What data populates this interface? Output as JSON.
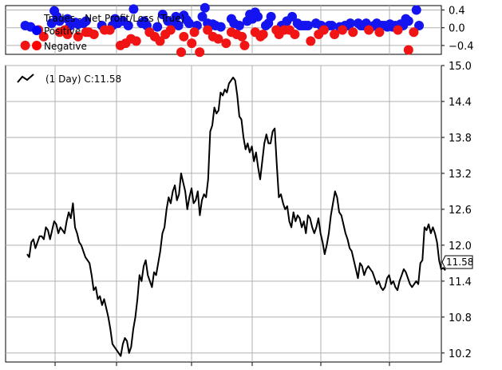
{
  "chart_data": [
    {
      "panel": "trades",
      "type": "scatter",
      "ylim": [
        -0.6,
        0.5
      ],
      "ytick_labels": [
        "0.4",
        "0.0",
        "−0.4"
      ],
      "ytick_values": [
        0.4,
        0.0,
        -0.4
      ],
      "grid": true,
      "legend": {
        "placement": "top-left",
        "entries": [
          {
            "label": "Trades - Net Profit/Loss (True)",
            "marker": "none"
          },
          {
            "label": "Positive",
            "color": "#0000ff"
          },
          {
            "label": "Negative",
            "color": "#ff0000"
          }
        ]
      },
      "series": [
        {
          "name": "Positive",
          "color": "#1414f0",
          "x": [
            2,
            4,
            12,
            13,
            14,
            15,
            18,
            19,
            21,
            22,
            24,
            25,
            31,
            35,
            36,
            37,
            39,
            41,
            43,
            46,
            47,
            48,
            52,
            54,
            56,
            58,
            59,
            60,
            62,
            63,
            64,
            67,
            69,
            70,
            71,
            72,
            73,
            74,
            76,
            80,
            81,
            83,
            86,
            87,
            88,
            89,
            90,
            93,
            94,
            95,
            99,
            101,
            103,
            105,
            106,
            107,
            108,
            109,
            112,
            114,
            117,
            118,
            121,
            123,
            124,
            125,
            128,
            129,
            130,
            131,
            133,
            134,
            135,
            137,
            138,
            139,
            140,
            141,
            142,
            144,
            145,
            146,
            147,
            150,
            151
          ],
          "y": [
            0.05,
            0.02,
            0.1,
            0.38,
            0.25,
            0.15,
            0.2,
            0.05,
            0.12,
            0.08,
            0.1,
            0.15,
            0.05,
            0.05,
            0.2,
            0.1,
            0.15,
            0.05,
            0.42,
            0.1,
            0.15,
            0.05,
            0.02,
            0.3,
            0.15,
            0.1,
            0.25,
            0.05,
            0.28,
            0.18,
            0.1,
            0.05,
            0.25,
            0.45,
            0.1,
            0.05,
            0.08,
            0.05,
            0.02,
            0.2,
            0.1,
            0.05,
            0.15,
            0.3,
            0.2,
            0.35,
            0.25,
            0.05,
            0.1,
            0.25,
            0.05,
            0.15,
            0.25,
            0.1,
            0.05,
            0.05,
            0.05,
            0.05,
            0.1,
            0.05,
            0.05,
            0.05,
            0.02,
            0.05,
            0.05,
            0.1,
            0.1,
            0.05,
            0.05,
            0.1,
            0.02,
            0.05,
            0.1,
            0.05,
            0.05,
            0.02,
            0.08,
            0.02,
            0.05,
            0.08,
            0.05,
            0.2,
            0.15,
            0.4,
            0.05
          ]
        },
        {
          "name": "Negative",
          "color": "#f01414",
          "x": [
            2,
            7,
            9,
            15,
            17,
            18,
            22,
            25,
            26,
            28,
            32,
            34,
            38,
            40,
            42,
            44,
            49,
            51,
            53,
            55,
            57,
            61,
            62,
            65,
            66,
            68,
            71,
            73,
            75,
            78,
            80,
            82,
            84,
            85,
            89,
            91,
            92,
            97,
            98,
            100,
            102,
            104,
            110,
            113,
            115,
            119,
            122,
            126,
            132,
            136,
            143,
            147,
            149
          ],
          "y": [
            -0.4,
            -0.05,
            -0.2,
            -0.1,
            -0.05,
            -0.15,
            -0.2,
            -0.1,
            -0.1,
            -0.15,
            -0.05,
            -0.05,
            -0.4,
            -0.35,
            -0.25,
            -0.3,
            -0.1,
            -0.2,
            -0.3,
            -0.15,
            -0.05,
            -0.55,
            -0.2,
            -0.35,
            -0.1,
            -0.55,
            -0.05,
            -0.2,
            -0.25,
            -0.35,
            -0.1,
            -0.15,
            -0.2,
            -0.4,
            -0.1,
            -0.2,
            -0.15,
            -0.05,
            -0.15,
            -0.05,
            -0.05,
            -0.15,
            -0.3,
            -0.15,
            -0.05,
            -0.15,
            -0.05,
            -0.1,
            -0.05,
            -0.1,
            -0.05,
            -0.5,
            -0.1
          ]
        }
      ]
    },
    {
      "panel": "price",
      "type": "line",
      "ylim": [
        10.05,
        15.0
      ],
      "ytick_labels": [
        "15.0",
        "14.4",
        "13.8",
        "13.2",
        "12.6",
        "12.0",
        "11.4",
        "10.8",
        "10.2"
      ],
      "ytick_values": [
        15.0,
        14.4,
        13.8,
        13.2,
        12.6,
        12.0,
        11.4,
        10.8,
        10.2
      ],
      "grid": true,
      "legend": {
        "placement": "top-left",
        "entries": [
          {
            "label": "(1 Day) C:11.58",
            "color": "#000000"
          }
        ]
      },
      "last_value_label": "11.58",
      "series": [
        {
          "name": "(1 Day) C:11.58",
          "color": "#000000",
          "values": [
            11.85,
            11.8,
            12.05,
            12.1,
            11.95,
            12.05,
            12.15,
            12.15,
            12.1,
            12.3,
            12.25,
            12.1,
            12.25,
            12.4,
            12.35,
            12.2,
            12.3,
            12.25,
            12.2,
            12.4,
            12.55,
            12.45,
            12.7,
            12.3,
            12.2,
            12.05,
            12.0,
            11.9,
            11.8,
            11.75,
            11.7,
            11.5,
            11.25,
            11.3,
            11.1,
            11.15,
            11.0,
            11.1,
            10.95,
            10.8,
            10.6,
            10.35,
            10.3,
            10.25,
            10.2,
            10.15,
            10.35,
            10.45,
            10.4,
            10.2,
            10.3,
            10.6,
            10.8,
            11.1,
            11.5,
            11.4,
            11.65,
            11.75,
            11.5,
            11.4,
            11.3,
            11.55,
            11.5,
            11.7,
            11.9,
            12.2,
            12.3,
            12.6,
            12.8,
            12.7,
            12.9,
            13.0,
            12.75,
            12.85,
            13.2,
            13.05,
            12.9,
            12.6,
            12.8,
            12.95,
            12.7,
            12.75,
            12.9,
            12.5,
            12.75,
            12.85,
            12.8,
            13.1,
            13.9,
            14.0,
            14.3,
            14.2,
            14.25,
            14.55,
            14.5,
            14.6,
            14.55,
            14.7,
            14.75,
            14.8,
            14.75,
            14.5,
            14.15,
            14.1,
            13.8,
            13.6,
            13.7,
            13.55,
            13.65,
            13.4,
            13.55,
            13.3,
            13.1,
            13.4,
            13.7,
            13.85,
            13.7,
            13.7,
            13.9,
            13.95,
            13.35,
            12.8,
            12.85,
            12.7,
            12.6,
            12.65,
            12.4,
            12.3,
            12.55,
            12.4,
            12.5,
            12.45,
            12.3,
            12.4,
            12.2,
            12.5,
            12.45,
            12.3,
            12.2,
            12.3,
            12.45,
            12.2,
            12.05,
            11.85,
            12.0,
            12.2,
            12.5,
            12.7,
            12.9,
            12.8,
            12.55,
            12.5,
            12.35,
            12.2,
            12.1,
            11.95,
            11.9,
            11.75,
            11.6,
            11.45,
            11.7,
            11.65,
            11.5,
            11.6,
            11.65,
            11.6,
            11.55,
            11.45,
            11.35,
            11.4,
            11.3,
            11.25,
            11.3,
            11.45,
            11.5,
            11.35,
            11.4,
            11.3,
            11.25,
            11.4,
            11.5,
            11.6,
            11.55,
            11.45,
            11.35,
            11.3,
            11.35,
            11.4,
            11.35,
            11.7,
            11.75,
            12.3,
            12.25,
            12.35,
            12.2,
            12.3,
            12.2,
            12.05,
            11.75,
            11.6,
            11.62,
            11.58
          ]
        }
      ]
    }
  ]
}
